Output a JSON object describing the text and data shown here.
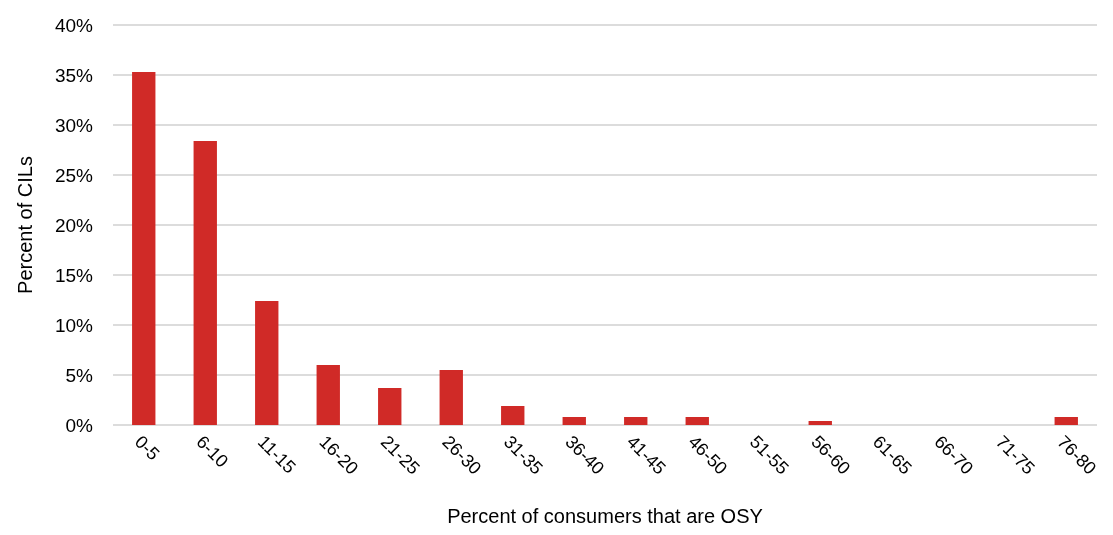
{
  "chart_data": {
    "type": "bar",
    "xlabel": "Percent of consumers that are OSY",
    "ylabel": "Percent of CILs",
    "categories": [
      "0-5",
      "6-10",
      "11-15",
      "16-20",
      "21-25",
      "26-30",
      "31-35",
      "36-40",
      "41-45",
      "46-50",
      "51-55",
      "56-60",
      "61-65",
      "66-70",
      "71-75",
      "76-80"
    ],
    "values": [
      35.3,
      28.4,
      12.4,
      6.0,
      3.7,
      5.5,
      1.9,
      0.8,
      0.8,
      0.8,
      0,
      0.4,
      0,
      0,
      0,
      0.8
    ],
    "color": "#d02a27",
    "ylim": [
      0,
      40
    ],
    "yticks": [
      {
        "value": 0,
        "label": "0%"
      },
      {
        "value": 5,
        "label": "5%"
      },
      {
        "value": 10,
        "label": "10%"
      },
      {
        "value": 15,
        "label": "15%"
      },
      {
        "value": 20,
        "label": "20%"
      },
      {
        "value": 25,
        "label": "25%"
      },
      {
        "value": 30,
        "label": "30%"
      },
      {
        "value": 35,
        "label": "35%"
      },
      {
        "value": 40,
        "label": "40%"
      }
    ],
    "grid": "y"
  }
}
